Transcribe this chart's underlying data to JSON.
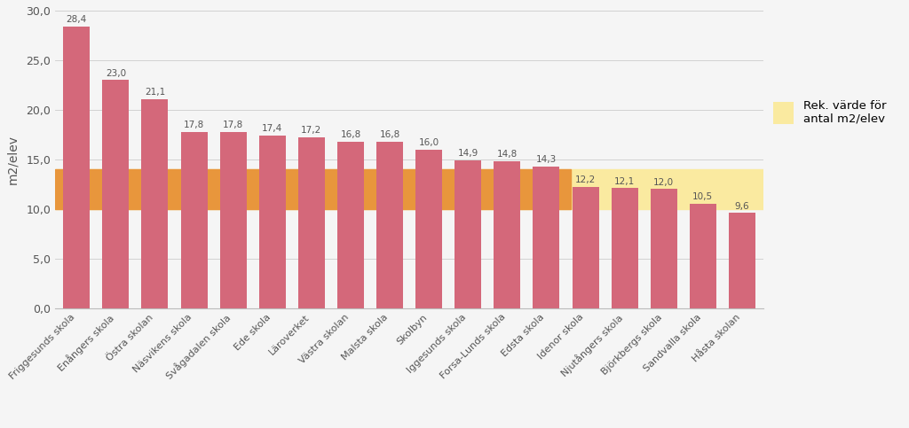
{
  "categories": [
    "Friggesunds skola",
    "Enångers skola",
    "Östra skolan",
    "Näsvikens skola",
    "Svågadalen skola",
    "Ede skola",
    "Läroverket",
    "Västra skolan",
    "Malsta skola",
    "Skolbyn",
    "Iggesunds skola",
    "Forsa-Lunds skola",
    "Edsta skola",
    "Idenor skola",
    "Njutångers skola",
    "Björkbergs skola",
    "Sandvalla skola",
    "Håsta skolan"
  ],
  "values": [
    28.4,
    23.0,
    21.1,
    17.8,
    17.8,
    17.4,
    17.2,
    16.8,
    16.8,
    16.0,
    14.9,
    14.8,
    14.3,
    12.2,
    12.1,
    12.0,
    10.5,
    9.6
  ],
  "bar_color": "#d4687a",
  "ylabel": "m2/elev",
  "ylim": [
    0,
    30
  ],
  "yticks": [
    0.0,
    5.0,
    10.0,
    15.0,
    20.0,
    25.0,
    30.0
  ],
  "ytick_labels": [
    "0,0",
    "5,0",
    "10,0",
    "15,0",
    "20,0",
    "25,0",
    "30,0"
  ],
  "band_lower": 10.0,
  "band_upper": 14.0,
  "band_orange_color": "#e8963c",
  "band_yellow_color": "#faeaa0",
  "legend_label": "Rek. värde för\nantal m2/elev",
  "legend_box_color": "#faeaa0",
  "background_color": "#f5f5f5",
  "plot_bg_color": "#f5f5f5",
  "grid_color": "#cccccc",
  "label_color": "#555555",
  "value_label_fontsize": 7.5,
  "xlabel_fontsize": 8.5,
  "ylabel_fontsize": 10
}
